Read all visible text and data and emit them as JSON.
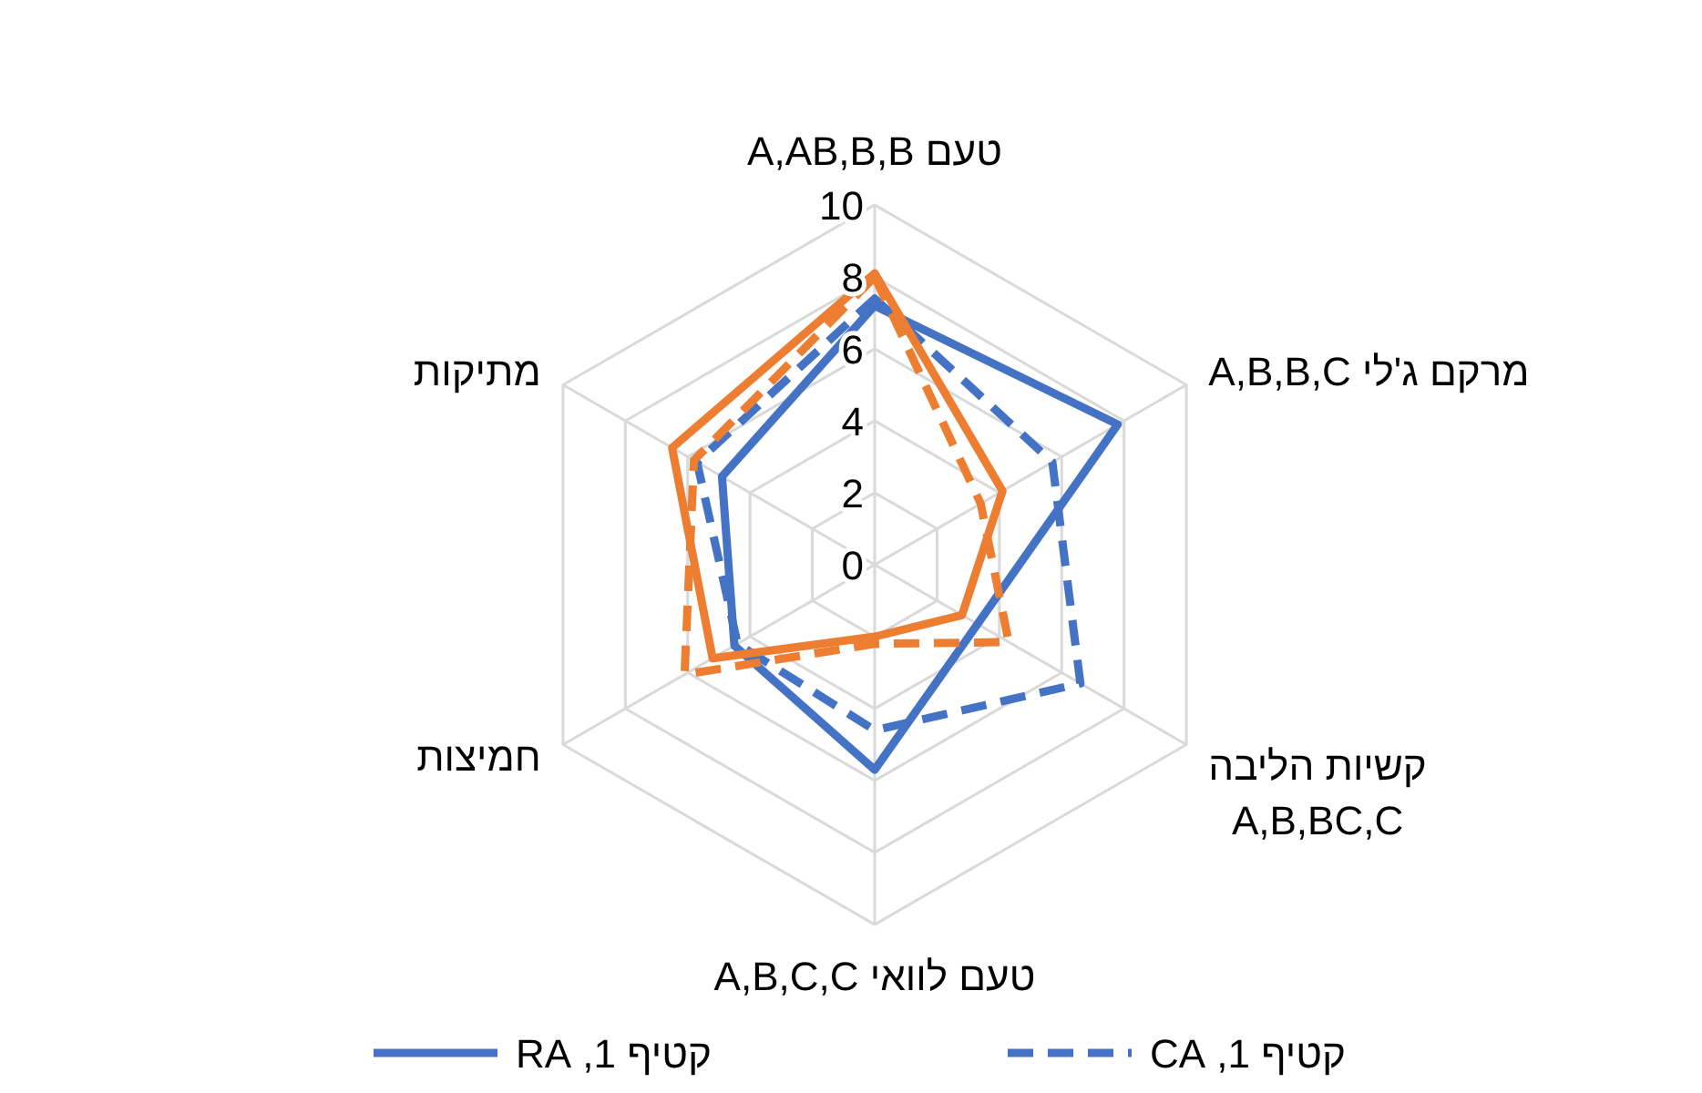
{
  "chart_data": {
    "type": "radar",
    "categories": [
      "טעם A,AB,B,B",
      "מרקם ג'לי A,B,B,C",
      "קשיות הליבה\nA,B,BC,C",
      "טעם לוואי A,B,C,C",
      "חמיצות",
      "מתיקות"
    ],
    "series": [
      {
        "name": "קטיף 1, RA",
        "color": "#4472c4",
        "line_style": "solid",
        "values": [
          7.2,
          7.8,
          3.3,
          5.7,
          4.5,
          4.9
        ]
      },
      {
        "name": "קטיף 1, CA",
        "color": "#4472c4",
        "line_style": "dashed",
        "values": [
          7.4,
          5.7,
          6.6,
          4.6,
          4.4,
          5.7
        ]
      },
      {
        "color": "#ed7d31",
        "line_style": "solid",
        "values": [
          8.1,
          4.1,
          2.8,
          2.0,
          5.2,
          6.5
        ]
      },
      {
        "color": "#ed7d31",
        "line_style": "dashed",
        "values": [
          8.0,
          3.4,
          4.3,
          2.2,
          6.1,
          5.8
        ]
      }
    ],
    "ylim": [
      0,
      10
    ],
    "yticks": [
      0,
      2,
      4,
      6,
      8,
      10
    ],
    "grid": true,
    "legend": "bottom"
  }
}
